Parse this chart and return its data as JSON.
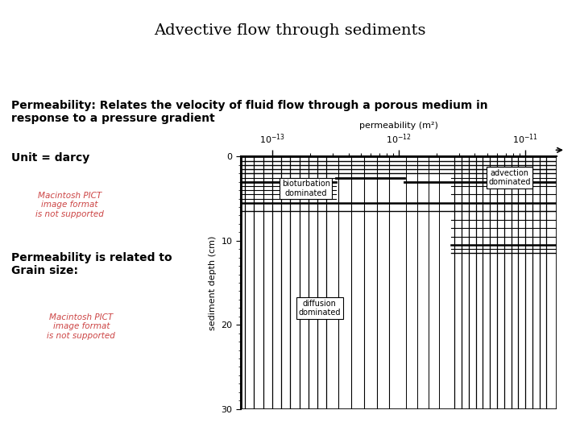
{
  "title": "Advective flow through sediments",
  "permeability_label": "Permeability: Relates the velocity of fluid flow through a porous medium in\nresponse to a pressure gradient",
  "unit_label": "Unit = darcy",
  "grain_size_label": "Permeability is related to\nGrain size:",
  "pict_text": "Macintosh PICT\nimage format\nis not supported",
  "background_color": "#ffffff",
  "title_fontsize": 14,
  "body_fontsize": 10,
  "small_fontsize": 7.5,
  "chart_xlabel": "permeability (m²)",
  "chart_ylabel": "sediment depth (cm)",
  "bioturbation_label": "bioturbation\ndominated",
  "advection_label": "advection\ndominated",
  "diffusion_label": "diffusion\ndominated"
}
